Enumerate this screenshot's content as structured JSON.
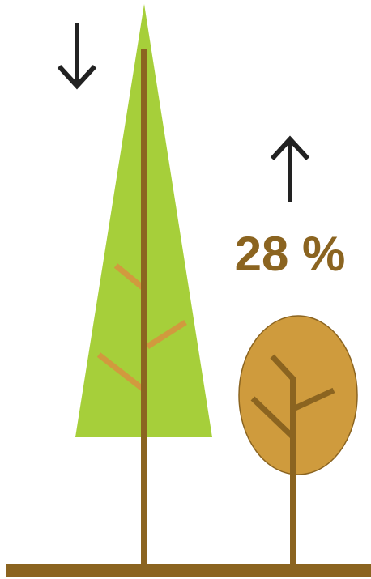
{
  "label": "28 %"
}
